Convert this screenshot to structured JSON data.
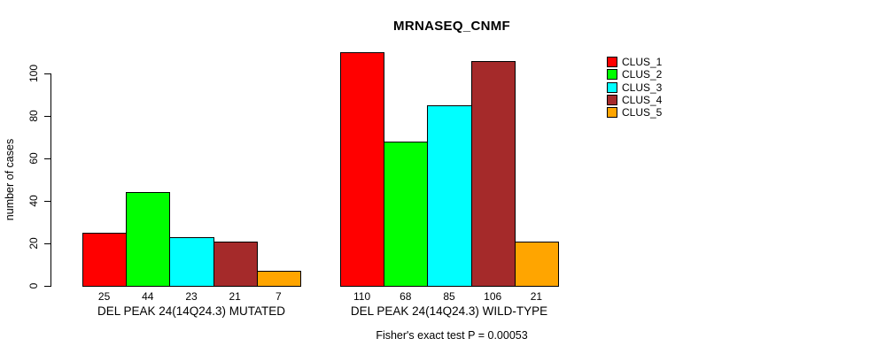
{
  "title": "MRNASEQ_CNMF",
  "footer": "Fisher's exact test P = 0.00053",
  "chart_data": {
    "type": "bar",
    "title": "MRNASEQ_CNMF",
    "xlabel": "",
    "ylabel": "number of cases",
    "ylim": [
      0,
      100
    ],
    "y_ticks": [
      0,
      20,
      40,
      60,
      80,
      100
    ],
    "grid": false,
    "legend_position": "right",
    "categories": [
      "DEL PEAK 24(14Q24.3) MUTATED",
      "DEL PEAK 24(14Q24.3) WILD-TYPE"
    ],
    "series": [
      {
        "name": "CLUS_1",
        "color": "#FF0000",
        "values": [
          25,
          110
        ]
      },
      {
        "name": "CLUS_2",
        "color": "#00FF00",
        "values": [
          44,
          68
        ]
      },
      {
        "name": "CLUS_3",
        "color": "#00FFFF",
        "values": [
          23,
          85
        ]
      },
      {
        "name": "CLUS_4",
        "color": "#A52A2A",
        "values": [
          21,
          106
        ]
      },
      {
        "name": "CLUS_5",
        "color": "#FFA500",
        "values": [
          7,
          21
        ]
      }
    ],
    "bar_value_labels": [
      [
        25,
        44,
        23,
        21,
        7
      ],
      [
        110,
        68,
        85,
        106,
        21
      ]
    ],
    "annotation": "Fisher's exact test P = 0.00053"
  }
}
